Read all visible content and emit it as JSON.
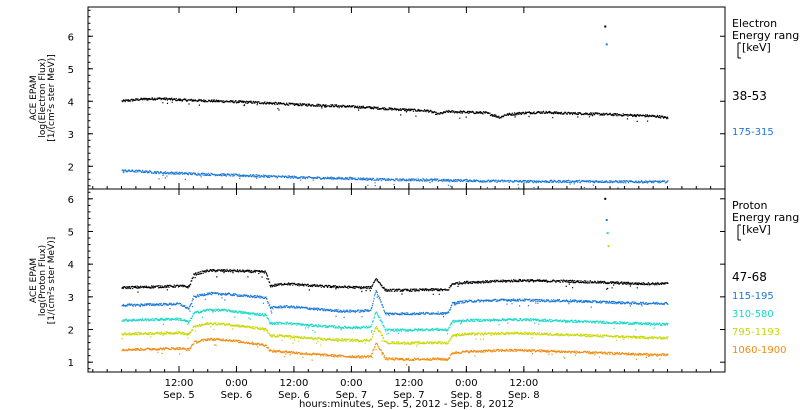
{
  "chart_data": [
    {
      "type": "scatter",
      "panel": "electron",
      "ylabel_lines": [
        "ACE EPAM",
        "log(Electron Flux)",
        "[1/(cm²s ster MeV)]"
      ],
      "ylim": [
        1.3,
        6.9
      ],
      "yticks": [
        2,
        3,
        4,
        5,
        6
      ],
      "legend_title": [
        "Electron",
        "Energy range",
        "[keV]"
      ],
      "series": [
        {
          "name": "38-53",
          "color": "#000000",
          "points": [
            [
              0,
              4.02
            ],
            [
              4,
              4.08
            ],
            [
              8,
              4.1
            ],
            [
              12,
              4.06
            ],
            [
              16,
              4.04
            ],
            [
              20,
              4.02
            ],
            [
              24,
              4.0
            ],
            [
              28,
              3.98
            ],
            [
              32,
              3.95
            ],
            [
              36,
              3.92
            ],
            [
              40,
              3.9
            ],
            [
              44,
              3.88
            ],
            [
              48,
              3.85
            ],
            [
              52,
              3.82
            ],
            [
              56,
              3.78
            ],
            [
              60,
              3.75
            ],
            [
              64,
              3.72
            ],
            [
              66,
              3.62
            ],
            [
              68,
              3.7
            ],
            [
              72,
              3.68
            ],
            [
              76,
              3.66
            ],
            [
              79,
              3.52
            ],
            [
              80,
              3.6
            ],
            [
              84,
              3.66
            ],
            [
              88,
              3.68
            ],
            [
              92,
              3.65
            ],
            [
              96,
              3.64
            ],
            [
              100,
              3.62
            ],
            [
              104,
              3.6
            ],
            [
              108,
              3.58
            ],
            [
              112,
              3.55
            ],
            [
              114,
              3.5
            ]
          ]
        },
        {
          "name": "175-315",
          "color": "#1a78d6",
          "points": [
            [
              0,
              1.88
            ],
            [
              4,
              1.86
            ],
            [
              8,
              1.82
            ],
            [
              12,
              1.8
            ],
            [
              16,
              1.78
            ],
            [
              20,
              1.76
            ],
            [
              24,
              1.74
            ],
            [
              28,
              1.72
            ],
            [
              32,
              1.7
            ],
            [
              36,
              1.68
            ],
            [
              40,
              1.66
            ],
            [
              44,
              1.65
            ],
            [
              48,
              1.64
            ],
            [
              52,
              1.62
            ],
            [
              56,
              1.6
            ],
            [
              60,
              1.6
            ],
            [
              64,
              1.6
            ],
            [
              68,
              1.58
            ],
            [
              72,
              1.58
            ],
            [
              76,
              1.56
            ],
            [
              80,
              1.56
            ],
            [
              84,
              1.55
            ],
            [
              88,
              1.55
            ],
            [
              92,
              1.55
            ],
            [
              96,
              1.55
            ],
            [
              100,
              1.55
            ],
            [
              104,
              1.54
            ],
            [
              108,
              1.54
            ],
            [
              112,
              1.54
            ],
            [
              114,
              1.54
            ]
          ]
        }
      ],
      "spikes": [
        [
          101,
          6.3,
          "#000000"
        ],
        [
          101.3,
          5.75,
          "#1a78d6"
        ]
      ]
    },
    {
      "type": "scatter",
      "panel": "proton",
      "ylabel_lines": [
        "ACE EPAM",
        "log(Proton Flux)",
        "[1/(cm²s ster MeV)]"
      ],
      "ylim": [
        0.7,
        6.3
      ],
      "yticks": [
        1,
        2,
        3,
        4,
        5,
        6
      ],
      "legend_title": [
        "Proton",
        "Energy range",
        "[keV]"
      ],
      "series": [
        {
          "name": "47-68",
          "color": "#000000",
          "points": [
            [
              0,
              3.3
            ],
            [
              6,
              3.32
            ],
            [
              12,
              3.35
            ],
            [
              14,
              3.32
            ],
            [
              15,
              3.7
            ],
            [
              18,
              3.82
            ],
            [
              22,
              3.82
            ],
            [
              26,
              3.8
            ],
            [
              30,
              3.78
            ],
            [
              31,
              3.35
            ],
            [
              34,
              3.42
            ],
            [
              38,
              3.38
            ],
            [
              42,
              3.34
            ],
            [
              46,
              3.32
            ],
            [
              50,
              3.3
            ],
            [
              52,
              3.3
            ],
            [
              53,
              3.58
            ],
            [
              54,
              3.4
            ],
            [
              55,
              3.22
            ],
            [
              60,
              3.22
            ],
            [
              66,
              3.24
            ],
            [
              68,
              3.22
            ],
            [
              69,
              3.42
            ],
            [
              72,
              3.46
            ],
            [
              76,
              3.48
            ],
            [
              80,
              3.5
            ],
            [
              84,
              3.52
            ],
            [
              88,
              3.5
            ],
            [
              92,
              3.5
            ],
            [
              96,
              3.48
            ],
            [
              100,
              3.46
            ],
            [
              104,
              3.44
            ],
            [
              108,
              3.42
            ],
            [
              112,
              3.42
            ],
            [
              114,
              3.42
            ]
          ]
        },
        {
          "name": "115-195",
          "color": "#1a78d6",
          "points": [
            [
              0,
              2.76
            ],
            [
              6,
              2.78
            ],
            [
              12,
              2.8
            ],
            [
              14,
              2.65
            ],
            [
              15,
              3.02
            ],
            [
              18,
              3.12
            ],
            [
              22,
              3.1
            ],
            [
              26,
              3.04
            ],
            [
              30,
              3.0
            ],
            [
              31,
              2.68
            ],
            [
              34,
              2.72
            ],
            [
              38,
              2.68
            ],
            [
              42,
              2.62
            ],
            [
              46,
              2.58
            ],
            [
              50,
              2.58
            ],
            [
              52,
              2.62
            ],
            [
              53,
              3.2
            ],
            [
              54,
              2.9
            ],
            [
              55,
              2.5
            ],
            [
              60,
              2.5
            ],
            [
              66,
              2.52
            ],
            [
              68,
              2.5
            ],
            [
              69,
              2.82
            ],
            [
              72,
              2.88
            ],
            [
              76,
              2.9
            ],
            [
              80,
              2.92
            ],
            [
              84,
              2.92
            ],
            [
              88,
              2.9
            ],
            [
              92,
              2.9
            ],
            [
              96,
              2.88
            ],
            [
              100,
              2.86
            ],
            [
              104,
              2.84
            ],
            [
              108,
              2.82
            ],
            [
              112,
              2.82
            ],
            [
              114,
              2.82
            ]
          ]
        },
        {
          "name": "310-580",
          "color": "#18d8c8",
          "points": [
            [
              0,
              2.3
            ],
            [
              6,
              2.32
            ],
            [
              12,
              2.34
            ],
            [
              14,
              2.24
            ],
            [
              15,
              2.52
            ],
            [
              18,
              2.62
            ],
            [
              22,
              2.6
            ],
            [
              26,
              2.52
            ],
            [
              30,
              2.46
            ],
            [
              31,
              2.2
            ],
            [
              34,
              2.22
            ],
            [
              38,
              2.16
            ],
            [
              42,
              2.12
            ],
            [
              46,
              2.08
            ],
            [
              50,
              2.08
            ],
            [
              52,
              2.1
            ],
            [
              53,
              2.55
            ],
            [
              54,
              2.3
            ],
            [
              55,
              2.0
            ],
            [
              60,
              2.0
            ],
            [
              66,
              2.02
            ],
            [
              68,
              2.0
            ],
            [
              69,
              2.26
            ],
            [
              72,
              2.3
            ],
            [
              76,
              2.3
            ],
            [
              80,
              2.32
            ],
            [
              84,
              2.32
            ],
            [
              88,
              2.3
            ],
            [
              92,
              2.28
            ],
            [
              96,
              2.26
            ],
            [
              100,
              2.24
            ],
            [
              104,
              2.22
            ],
            [
              108,
              2.2
            ],
            [
              112,
              2.18
            ],
            [
              114,
              2.18
            ]
          ]
        },
        {
          "name": "795-1193",
          "color": "#c8d800",
          "points": [
            [
              0,
              1.88
            ],
            [
              6,
              1.9
            ],
            [
              12,
              1.92
            ],
            [
              14,
              1.86
            ],
            [
              15,
              2.1
            ],
            [
              18,
              2.2
            ],
            [
              22,
              2.18
            ],
            [
              26,
              2.1
            ],
            [
              30,
              2.02
            ],
            [
              31,
              1.82
            ],
            [
              34,
              1.82
            ],
            [
              38,
              1.76
            ],
            [
              42,
              1.72
            ],
            [
              46,
              1.7
            ],
            [
              50,
              1.68
            ],
            [
              52,
              1.7
            ],
            [
              53,
              2.1
            ],
            [
              54,
              1.9
            ],
            [
              55,
              1.62
            ],
            [
              60,
              1.6
            ],
            [
              66,
              1.62
            ],
            [
              68,
              1.6
            ],
            [
              69,
              1.84
            ],
            [
              72,
              1.88
            ],
            [
              76,
              1.88
            ],
            [
              80,
              1.9
            ],
            [
              84,
              1.9
            ],
            [
              88,
              1.88
            ],
            [
              92,
              1.86
            ],
            [
              96,
              1.84
            ],
            [
              100,
              1.82
            ],
            [
              104,
              1.8
            ],
            [
              108,
              1.78
            ],
            [
              112,
              1.76
            ],
            [
              114,
              1.76
            ]
          ]
        },
        {
          "name": "1060-1900",
          "color": "#f08c10",
          "points": [
            [
              0,
              1.4
            ],
            [
              6,
              1.42
            ],
            [
              12,
              1.44
            ],
            [
              14,
              1.4
            ],
            [
              15,
              1.62
            ],
            [
              18,
              1.72
            ],
            [
              22,
              1.7
            ],
            [
              26,
              1.62
            ],
            [
              30,
              1.54
            ],
            [
              31,
              1.36
            ],
            [
              34,
              1.34
            ],
            [
              38,
              1.28
            ],
            [
              42,
              1.24
            ],
            [
              46,
              1.2
            ],
            [
              50,
              1.18
            ],
            [
              52,
              1.2
            ],
            [
              53,
              1.6
            ],
            [
              54,
              1.4
            ],
            [
              55,
              1.12
            ],
            [
              60,
              1.1
            ],
            [
              66,
              1.12
            ],
            [
              68,
              1.1
            ],
            [
              69,
              1.3
            ],
            [
              72,
              1.34
            ],
            [
              76,
              1.36
            ],
            [
              80,
              1.38
            ],
            [
              84,
              1.38
            ],
            [
              88,
              1.36
            ],
            [
              92,
              1.34
            ],
            [
              96,
              1.32
            ],
            [
              100,
              1.3
            ],
            [
              104,
              1.28
            ],
            [
              108,
              1.26
            ],
            [
              112,
              1.24
            ],
            [
              114,
              1.24
            ]
          ]
        }
      ],
      "spikes": [
        [
          101,
          6.0,
          "#000000"
        ],
        [
          101.3,
          5.35,
          "#1a78d6"
        ],
        [
          101.5,
          4.95,
          "#18d8c8"
        ],
        [
          101.7,
          4.55,
          "#c8d800"
        ]
      ]
    }
  ],
  "x_axis": {
    "unit": "hours since 2012-09-05 00:00",
    "xlim": [
      -7,
      126
    ],
    "ticks": [
      {
        "x": 12,
        "time": "12:00",
        "date": "Sep. 5"
      },
      {
        "x": 24,
        "time": "0:00",
        "date": "Sep. 6"
      },
      {
        "x": 36,
        "time": "12:00",
        "date": "Sep. 6"
      },
      {
        "x": 48,
        "time": "0:00",
        "date": "Sep. 7"
      },
      {
        "x": 60,
        "time": "12:00",
        "date": "Sep. 7"
      },
      {
        "x": 72,
        "time": "0:00",
        "date": "Sep. 8"
      },
      {
        "x": 84,
        "time": "12:00",
        "date": "Sep. 8"
      }
    ],
    "title": "hours:minutes, Sep.  5, 2012 - Sep.  8, 2012"
  }
}
